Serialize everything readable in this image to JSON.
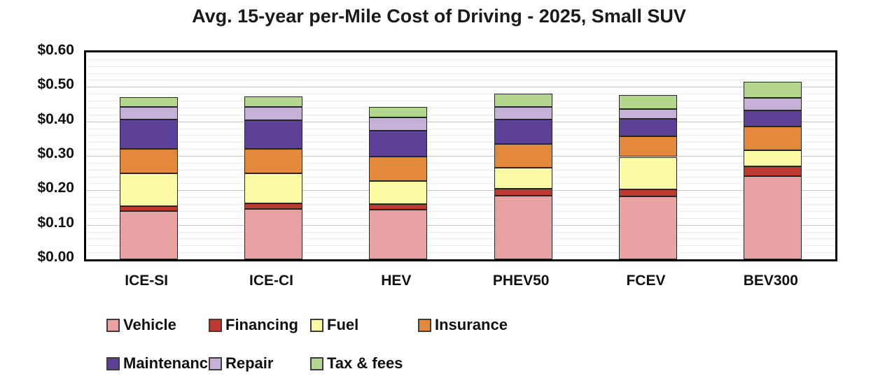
{
  "title": "Avg. 15-year per-Mile Cost of Driving - 2025, Small SUV",
  "chart_data": {
    "type": "bar",
    "subtype": "stacked-vertical",
    "title": "Avg. 15-year per-Mile Cost of Driving - 2025, Small SUV",
    "categories": [
      "ICE-SI",
      "ICE-CI",
      "HEV",
      "PHEV50",
      "FCEV",
      "BEV300"
    ],
    "series": [
      {
        "name": "Vehicle",
        "color": "#E9A2A2",
        "values": [
          0.14,
          0.145,
          0.143,
          0.185,
          0.183,
          0.242
        ]
      },
      {
        "name": "Financing",
        "color": "#BE3A31",
        "values": [
          0.015,
          0.017,
          0.017,
          0.019,
          0.02,
          0.028
        ]
      },
      {
        "name": "Fuel",
        "color": "#FBFBA6",
        "values": [
          0.095,
          0.088,
          0.068,
          0.062,
          0.094,
          0.046
        ]
      },
      {
        "name": "Insurance",
        "color": "#E2893B",
        "values": [
          0.07,
          0.07,
          0.07,
          0.068,
          0.06,
          0.07
        ]
      },
      {
        "name": "Maintenance",
        "color": "#5B4197",
        "values": [
          0.085,
          0.083,
          0.076,
          0.071,
          0.051,
          0.045
        ]
      },
      {
        "name": "Repair",
        "color": "#C3B2D6",
        "values": [
          0.037,
          0.038,
          0.037,
          0.037,
          0.028,
          0.037
        ]
      },
      {
        "name": "Tax & fees",
        "color": "#B4D78E",
        "values": [
          0.028,
          0.031,
          0.03,
          0.038,
          0.041,
          0.046
        ]
      }
    ],
    "stack_totals": [
      0.47,
      0.472,
      0.441,
      0.48,
      0.477,
      0.514
    ],
    "ylabel": "",
    "xlabel": "",
    "ylim": [
      0.0,
      0.6
    ],
    "y_tick_labels": [
      "$0.00",
      "$0.10",
      "$0.20",
      "$0.30",
      "$0.40",
      "$0.50",
      "$0.60"
    ],
    "y_major_step": 0.1,
    "y_minor_step": 0.02,
    "grid": "horizontal-major-and-minor",
    "legend_position": "bottom",
    "legend_rows": [
      [
        "Vehicle",
        "Financing",
        "Fuel",
        "Insurance"
      ],
      [
        "Maintenance",
        "Repair",
        "Tax & fees"
      ]
    ],
    "currency_format": "$0.00 per mile"
  }
}
